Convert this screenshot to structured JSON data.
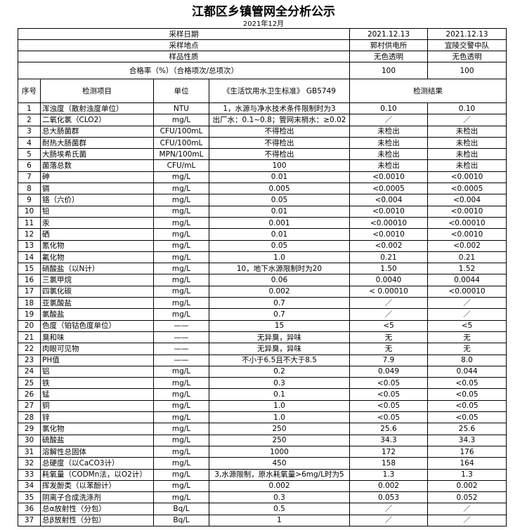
{
  "title": "江都区乡镇管网全分析公示",
  "subtitle": "2021年12月",
  "info_rows": [
    {
      "label": "采样日期",
      "values": [
        "2021.12.13",
        "2021.12.13"
      ]
    },
    {
      "label": "采样地点",
      "values": [
        "郭村供电所",
        "宜陵交警中队"
      ]
    },
    {
      "label": "样品性质",
      "values": [
        "无色透明",
        "无色透明"
      ]
    },
    {
      "label": "合格率（%）（合格项次/总项次）",
      "values": [
        "100",
        "100"
      ]
    }
  ],
  "column_headers": [
    "序号",
    "检测项目",
    "单位",
    "《生活饮用水卫生标准》 GB5749",
    "检测结果"
  ],
  "rows": [
    [
      "1",
      "浑浊度（散射浊度单位）",
      "NTU",
      "1，水源与净水技术条件限制时为3",
      "0.10",
      "0.10"
    ],
    [
      "2",
      "二氧化氯（CLO2）",
      "mg/L",
      "出厂水：0.1~0.8；管网末梢水：≥0.02",
      "／",
      "／"
    ],
    [
      "3",
      "总大肠菌群",
      "CFU/100mL",
      "不得检出",
      "未检出",
      "未检出"
    ],
    [
      "4",
      "耐热大肠菌群",
      "CFU/100mL",
      "不得检出",
      "未检出",
      "未检出"
    ],
    [
      "5",
      "大肠埃希氏菌",
      "MPN/100mL",
      "不得检出",
      "未检出",
      "未检出"
    ],
    [
      "6",
      "菌落总数",
      "CFU/mL",
      "100",
      "未检出",
      "未检出"
    ],
    [
      "7",
      "砷",
      "mg/L",
      "0.01",
      "<0.0010",
      "<0.0010"
    ],
    [
      "8",
      "镉",
      "mg/L",
      "0.005",
      "<0.0005",
      "<0.0005"
    ],
    [
      "9",
      "铬（六价）",
      "mg/L",
      "0.05",
      "<0.004",
      "<0.004"
    ],
    [
      "10",
      "铅",
      "mg/L",
      "0.01",
      "<0.0010",
      "<0.0010"
    ],
    [
      "11",
      "汞",
      "mg/L",
      "0.001",
      "<0.00010",
      "<0.00010"
    ],
    [
      "12",
      "硒",
      "mg/L",
      "0.01",
      "<0.0010",
      "<0.0010"
    ],
    [
      "13",
      "氰化物",
      "mg/L",
      "0.05",
      "<0.002",
      "<0.002"
    ],
    [
      "14",
      "氟化物",
      "mg/L",
      "1.0",
      "0.21",
      "0.21"
    ],
    [
      "15",
      "硝酸盐（以N计）",
      "mg/L",
      "10，地下水源限制时为20",
      "1.50",
      "1.52"
    ],
    [
      "16",
      "三氯甲烷",
      "mg/L",
      "0.06",
      "0.0040",
      "0.0044"
    ],
    [
      "17",
      "四氯化碳",
      "mg/L",
      "0.002",
      "< 0.00010",
      "<0.00010"
    ],
    [
      "18",
      "亚氯酸盐",
      "mg/L",
      "0.7",
      "／",
      "／"
    ],
    [
      "19",
      "氯酸盐",
      "mg/L",
      "0.7",
      "／",
      "／"
    ],
    [
      "20",
      "色度（铂钴色度单位）",
      "——",
      "15",
      "<5",
      "<5"
    ],
    [
      "21",
      "臭和味",
      "——",
      "无异臭，异味",
      "无",
      "无"
    ],
    [
      "22",
      "肉眼可见物",
      "——",
      "无异臭，异味",
      "无",
      "无"
    ],
    [
      "23",
      "PH值",
      "——",
      "不小于6.5且不大于8.5",
      "7.9",
      "8.0"
    ],
    [
      "24",
      "铝",
      "mg/L",
      "0.2",
      "0.049",
      "0.044"
    ],
    [
      "25",
      "铁",
      "mg/L",
      "0.3",
      "<0.05",
      "<0.05"
    ],
    [
      "26",
      "锰",
      "mg/L",
      "0.1",
      "<0.05",
      "<0.05"
    ],
    [
      "27",
      "铜",
      "mg/L",
      "1.0",
      "<0.05",
      "<0.05"
    ],
    [
      "28",
      "锌",
      "mg/L",
      "1.0",
      "<0.05",
      "<0.05"
    ],
    [
      "29",
      "氯化物",
      "mg/L",
      "250",
      "25.6",
      "25.6"
    ],
    [
      "30",
      "硫酸盐",
      "mg/L",
      "250",
      "34.3",
      "34.3"
    ],
    [
      "31",
      "溶解性总固体",
      "mg/L",
      "1000",
      "172",
      "176"
    ],
    [
      "32",
      "总硬度（以CaCO3计）",
      "mg/L",
      "450",
      "158",
      "164"
    ],
    [
      "33",
      "耗氧量（CODMn法，以O2计）",
      "mg/L",
      "3,水源限制，原水耗氧量>6mg/L时为5",
      "1.3",
      "1.3"
    ],
    [
      "34",
      "挥发酚类（以苯酚计）",
      "mg/L",
      "0.002",
      "0.002",
      "0.002"
    ],
    [
      "35",
      "阴离子合成洗涤剂",
      "mg/L",
      "0.3",
      "0.053",
      "0.052"
    ],
    [
      "36",
      "总α放射性（分包）",
      "Bq/L",
      "0.5",
      "／",
      "／"
    ],
    [
      "37",
      "总β放射性（分包）",
      "Bq/L",
      "1",
      "／",
      "／"
    ]
  ]
}
